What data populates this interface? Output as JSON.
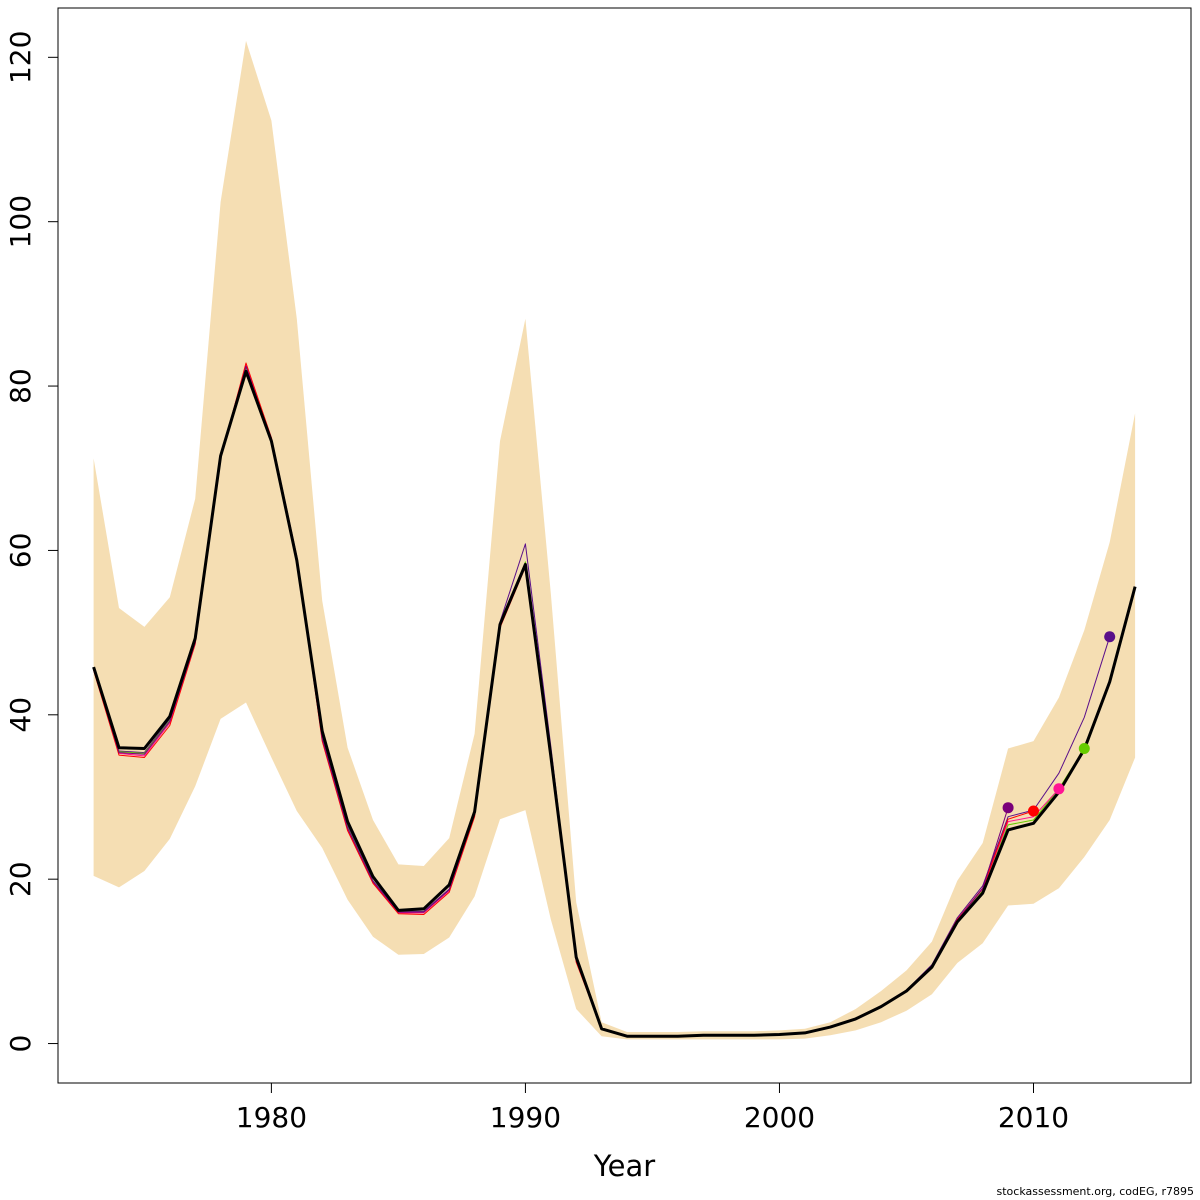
{
  "chart_data": {
    "type": "line",
    "title": "",
    "xlabel": "Year",
    "ylabel": "",
    "xlim": [
      1971.6,
      2016.2
    ],
    "ylim": [
      -4.8,
      126
    ],
    "x_ticks": [
      1980,
      1990,
      2000,
      2010
    ],
    "y_ticks": [
      0,
      20,
      40,
      60,
      80,
      100,
      120
    ],
    "grid": false,
    "legend": "none",
    "colors": {
      "band": "#f5deb3",
      "main": "#000000",
      "retro_1": "#5a0f8a",
      "retro_2": "#d4006e",
      "retro_3": "#ff0000",
      "retro_4": "#ff1493",
      "retro_5": "#66cc00",
      "retro_6": "#7a007a"
    },
    "band": {
      "x": [
        1973,
        1974,
        1975,
        1976,
        1977,
        1978,
        1979,
        1980,
        1981,
        1982,
        1983,
        1984,
        1985,
        1986,
        1987,
        1988,
        1989,
        1990,
        1991,
        1992,
        1993,
        1994,
        1995,
        1996,
        1997,
        1998,
        1999,
        2000,
        2001,
        2002,
        2003,
        2004,
        2005,
        2006,
        2007,
        2008,
        2009,
        2010,
        2011,
        2012,
        2013,
        2014
      ],
      "upper": [
        71.2,
        53.0,
        50.7,
        54.3,
        66.3,
        102.4,
        122.0,
        112.3,
        88.2,
        53.9,
        36.0,
        27.2,
        21.8,
        21.6,
        25.0,
        37.7,
        73.3,
        88.2,
        54.8,
        17.2,
        2.6,
        1.4,
        1.4,
        1.4,
        1.5,
        1.5,
        1.5,
        1.6,
        1.8,
        2.6,
        4.2,
        6.4,
        8.9,
        12.4,
        19.8,
        24.4,
        35.9,
        36.8,
        42.1,
        50.3,
        61.0,
        76.7
      ],
      "lower": [
        20.4,
        19.0,
        21.0,
        24.9,
        31.3,
        39.5,
        41.5,
        34.8,
        28.3,
        23.8,
        17.5,
        13.0,
        10.8,
        10.9,
        12.9,
        17.9,
        27.3,
        28.4,
        15.1,
        4.2,
        0.9,
        0.5,
        0.5,
        0.5,
        0.5,
        0.5,
        0.5,
        0.5,
        0.6,
        1.0,
        1.6,
        2.6,
        4.0,
        6.0,
        9.8,
        12.2,
        16.8,
        17.0,
        18.9,
        22.7,
        27.2,
        34.8
      ]
    },
    "series": [
      {
        "x": [
          1973,
          1974,
          1975,
          1976,
          1977,
          1978,
          1979,
          1980,
          1981,
          1982,
          1983,
          1984,
          1985,
          1986,
          1987,
          1988,
          1989,
          1990,
          1991,
          1992,
          1993,
          1994,
          1995,
          1996,
          1997,
          1998,
          1999,
          2000,
          2001,
          2002,
          2003,
          2004,
          2005,
          2006,
          2007,
          2008,
          2009,
          2010,
          2011,
          2012,
          2013,
          2014
        ],
        "values": [
          45.8,
          36.0,
          35.9,
          39.8,
          49.3,
          71.5,
          81.8,
          73.3,
          58.8,
          38.0,
          27.0,
          20.3,
          16.2,
          16.4,
          19.3,
          28.2,
          51.0,
          58.3,
          35.0,
          10.5,
          1.8,
          0.9,
          0.9,
          0.9,
          1.0,
          1.0,
          1.0,
          1.1,
          1.3,
          2.0,
          3.0,
          4.5,
          6.4,
          9.3,
          14.8,
          18.3,
          26.0,
          26.8,
          30.6,
          35.8,
          44.0,
          55.6
        ],
        "color_key": "main",
        "width": 3,
        "end_marker": false
      },
      {
        "x": [
          1973,
          1974,
          1975,
          1976,
          1977,
          1978,
          1979,
          1980,
          1981,
          1982,
          1983,
          1984,
          1985,
          1986,
          1987,
          1988,
          1989,
          1990,
          1991,
          1992,
          1993,
          1994,
          1995,
          1996,
          1997,
          1998,
          1999,
          2000,
          2001,
          2002,
          2003,
          2004,
          2005,
          2006,
          2007,
          2008,
          2009,
          2010,
          2011,
          2012,
          2013
        ],
        "values": [
          45.7,
          35.6,
          35.4,
          39.5,
          49.1,
          71.5,
          82.5,
          73.7,
          59.3,
          37.4,
          26.5,
          19.8,
          16.1,
          16.1,
          18.8,
          28.0,
          51.3,
          60.8,
          36.2,
          10.2,
          1.8,
          0.9,
          0.9,
          0.9,
          1.0,
          1.0,
          1.0,
          1.1,
          1.3,
          2.0,
          3.0,
          4.6,
          6.5,
          9.6,
          15.3,
          19.2,
          27.6,
          28.4,
          32.9,
          39.7,
          49.5
        ],
        "color_key": "retro_1",
        "width": 1,
        "end_marker": true
      },
      {
        "x": [
          1973,
          1974,
          1975,
          1976,
          1977,
          1978,
          1979,
          1980,
          1981,
          1982,
          1983,
          1984,
          1985,
          1986,
          1987,
          1988,
          1989,
          1990,
          1991,
          1992,
          1993,
          1994,
          1995,
          1996,
          1997,
          1998,
          1999,
          2000,
          2001,
          2002,
          2003,
          2004,
          2005,
          2006,
          2007,
          2008,
          2009,
          2010,
          2011,
          2012
        ],
        "values": [
          45.6,
          35.5,
          35.3,
          39.3,
          48.9,
          71.4,
          82.3,
          73.5,
          59.0,
          37.2,
          26.3,
          19.7,
          16.0,
          16.0,
          18.7,
          27.9,
          51.0,
          58.6,
          35.2,
          10.1,
          1.8,
          0.9,
          0.9,
          0.9,
          1.0,
          1.0,
          1.0,
          1.1,
          1.3,
          2.0,
          3.0,
          4.5,
          6.4,
          9.4,
          15.0,
          18.6,
          26.6,
          27.2,
          31.0,
          35.9
        ],
        "color_key": "retro_5",
        "width": 1,
        "end_marker": true
      },
      {
        "x": [
          1973,
          1974,
          1975,
          1976,
          1977,
          1978,
          1979,
          1980,
          1981,
          1982,
          1983,
          1984,
          1985,
          1986,
          1987,
          1988,
          1989,
          1990,
          1991,
          1992,
          1993,
          1994,
          1995,
          1996,
          1997,
          1998,
          1999,
          2000,
          2001,
          2002,
          2003,
          2004,
          2005,
          2006,
          2007,
          2008,
          2009,
          2010,
          2011
        ],
        "values": [
          45.5,
          35.3,
          35.0,
          39.0,
          48.7,
          71.3,
          82.6,
          73.6,
          59.1,
          37.0,
          26.1,
          19.6,
          15.9,
          15.9,
          18.6,
          27.8,
          50.8,
          58.2,
          34.9,
          10.0,
          1.8,
          0.9,
          0.9,
          0.9,
          1.0,
          1.0,
          1.0,
          1.1,
          1.3,
          2.0,
          3.0,
          4.5,
          6.4,
          9.4,
          15.1,
          18.8,
          27.0,
          27.6,
          31.0
        ],
        "color_key": "retro_4",
        "width": 1,
        "end_marker": true
      },
      {
        "x": [
          1973,
          1974,
          1975,
          1976,
          1977,
          1978,
          1979,
          1980,
          1981,
          1982,
          1983,
          1984,
          1985,
          1986,
          1987,
          1988,
          1989,
          1990,
          1991,
          1992,
          1993,
          1994,
          1995,
          1996,
          1997,
          1998,
          1999,
          2000,
          2001,
          2002,
          2003,
          2004,
          2005,
          2006,
          2007,
          2008,
          2009,
          2010
        ],
        "values": [
          45.4,
          35.1,
          34.8,
          38.7,
          48.6,
          71.2,
          82.8,
          73.7,
          59.2,
          36.8,
          25.9,
          19.5,
          15.8,
          15.7,
          18.4,
          27.6,
          50.6,
          58.0,
          34.7,
          9.9,
          1.8,
          0.9,
          0.9,
          0.9,
          1.0,
          1.0,
          1.0,
          1.1,
          1.3,
          2.0,
          3.0,
          4.5,
          6.4,
          9.4,
          15.1,
          18.9,
          27.3,
          28.3
        ],
        "color_key": "retro_3",
        "width": 1,
        "end_marker": true
      },
      {
        "x": [
          1973,
          1974,
          1975,
          1976,
          1977,
          1978,
          1979,
          1980,
          1981,
          1982,
          1983,
          1984,
          1985,
          1986,
          1987,
          1988,
          1989,
          1990,
          1991,
          1992,
          1993,
          1994,
          1995,
          1996,
          1997,
          1998,
          1999,
          2000,
          2001,
          2002,
          2003,
          2004,
          2005,
          2006,
          2007,
          2008,
          2009
        ],
        "values": [
          45.6,
          35.4,
          35.2,
          39.2,
          48.8,
          71.4,
          82.4,
          73.4,
          59.0,
          37.1,
          26.2,
          19.7,
          16.0,
          16.0,
          18.7,
          27.9,
          50.9,
          58.4,
          35.0,
          10.1,
          1.8,
          0.9,
          0.9,
          0.9,
          1.0,
          1.0,
          1.0,
          1.1,
          1.3,
          2.0,
          3.0,
          4.5,
          6.4,
          9.4,
          15.0,
          18.9,
          28.7
        ],
        "color_key": "retro_6",
        "width": 1,
        "end_marker": true
      }
    ],
    "note": "stockassessment.org, codEG, r7895"
  }
}
